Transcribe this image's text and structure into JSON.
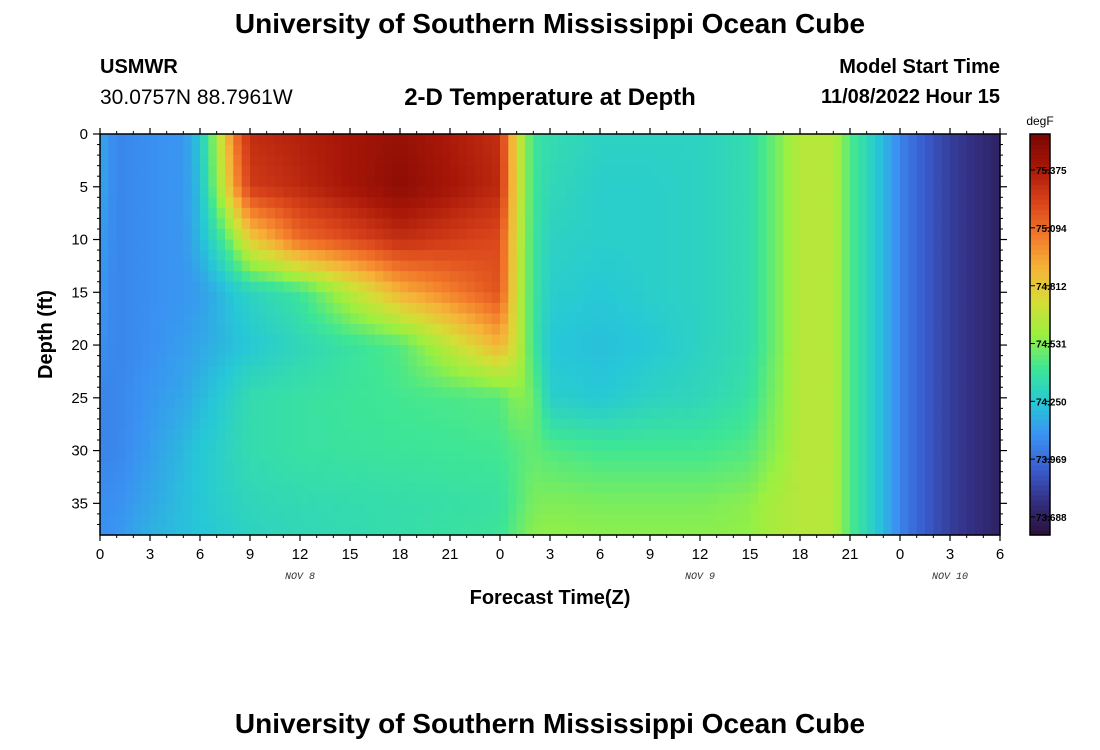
{
  "header": {
    "title": "University of Southern Mississippi Ocean Cube",
    "station": "USMWR",
    "coordinates": "30.0757N  88.7961W",
    "subtitle": "2-D Temperature at Depth",
    "model_start_label": "Model Start Time",
    "model_start_value": "11/08/2022 Hour 15"
  },
  "footer": {
    "title": "University of Southern Mississippi Ocean Cube"
  },
  "chart_data": {
    "type": "heatmap",
    "title": "2-D Temperature at Depth",
    "xlabel": "Forecast Time(Z)",
    "ylabel": "Depth (ft)",
    "x_tick_labels": [
      "0",
      "3",
      "6",
      "9",
      "12",
      "15",
      "18",
      "21",
      "0",
      "3",
      "6",
      "9",
      "12",
      "15",
      "18",
      "21",
      "0",
      "3",
      "6"
    ],
    "x_day_labels": [
      {
        "label": "NOV 8",
        "at_hour": 12
      },
      {
        "label": "NOV 9",
        "at_hour": 36
      },
      {
        "label": "NOV 10",
        "at_hour": 51
      }
    ],
    "x_range_hours": [
      0,
      54
    ],
    "y_tick_labels": [
      "0",
      "5",
      "10",
      "15",
      "20",
      "25",
      "30",
      "35"
    ],
    "ylim": [
      0,
      38
    ],
    "y_inverted": true,
    "colorbar": {
      "unit": "degF",
      "tick_labels": [
        "75.375",
        "75.094",
        "74.812",
        "74.531",
        "74.250",
        "73.969",
        "73.688"
      ],
      "range": [
        73.6,
        75.55
      ],
      "colors": [
        "#2b0f3a",
        "#332e80",
        "#3a5ed0",
        "#3a92f2",
        "#26c9d6",
        "#3ee695",
        "#9af040",
        "#d6dd36",
        "#f6b338",
        "#f2782a",
        "#d8421a",
        "#a81708",
        "#7a0603"
      ]
    },
    "z_grid": {
      "depths_ft": [
        0,
        5,
        10,
        15,
        20,
        25,
        30,
        35,
        38
      ],
      "hours": [
        0,
        1,
        3,
        5,
        6,
        7,
        8,
        9,
        12,
        18,
        24,
        25,
        26,
        27,
        30,
        33,
        36,
        39,
        40,
        42,
        44,
        45,
        47,
        48,
        49,
        51,
        54
      ],
      "values_degF": [
        [
          74.15,
          74.05,
          74.08,
          74.1,
          74.25,
          74.6,
          75.05,
          75.3,
          75.35,
          75.45,
          75.3,
          74.75,
          74.4,
          74.35,
          74.3,
          74.3,
          74.3,
          74.35,
          74.45,
          74.65,
          74.65,
          74.45,
          74.2,
          74.05,
          73.95,
          73.82,
          73.7
        ],
        [
          74.15,
          74.05,
          74.08,
          74.1,
          74.22,
          74.55,
          74.95,
          75.25,
          75.32,
          75.48,
          75.32,
          74.75,
          74.4,
          74.33,
          74.28,
          74.28,
          74.3,
          74.35,
          74.45,
          74.65,
          74.65,
          74.45,
          74.2,
          74.05,
          73.95,
          73.82,
          73.7
        ],
        [
          74.12,
          74.05,
          74.08,
          74.1,
          74.2,
          74.35,
          74.55,
          74.8,
          75.1,
          75.3,
          75.2,
          74.72,
          74.4,
          74.3,
          74.28,
          74.28,
          74.3,
          74.35,
          74.45,
          74.65,
          74.65,
          74.45,
          74.2,
          74.05,
          73.95,
          73.82,
          73.7
        ],
        [
          74.1,
          74.05,
          74.08,
          74.1,
          74.12,
          74.18,
          74.25,
          74.3,
          74.4,
          74.9,
          75.18,
          74.7,
          74.4,
          74.28,
          74.25,
          74.28,
          74.3,
          74.35,
          74.45,
          74.65,
          74.65,
          74.45,
          74.2,
          74.05,
          73.95,
          73.82,
          73.7
        ],
        [
          74.08,
          74.05,
          74.08,
          74.12,
          74.15,
          74.18,
          74.22,
          74.25,
          74.32,
          74.45,
          74.9,
          74.7,
          74.4,
          74.25,
          74.22,
          74.25,
          74.3,
          74.35,
          74.45,
          74.65,
          74.65,
          74.45,
          74.2,
          74.05,
          73.95,
          73.82,
          73.7
        ],
        [
          74.05,
          74.05,
          74.1,
          74.15,
          74.2,
          74.25,
          74.3,
          74.35,
          74.38,
          74.42,
          74.45,
          74.55,
          74.5,
          74.28,
          74.25,
          74.3,
          74.32,
          74.38,
          74.48,
          74.65,
          74.65,
          74.45,
          74.2,
          74.05,
          73.95,
          73.82,
          73.7
        ],
        [
          74.05,
          74.05,
          74.12,
          74.2,
          74.25,
          74.28,
          74.32,
          74.35,
          74.38,
          74.4,
          74.42,
          74.45,
          74.48,
          74.45,
          74.42,
          74.42,
          74.42,
          74.45,
          74.52,
          74.65,
          74.65,
          74.45,
          74.2,
          74.05,
          73.95,
          73.82,
          73.7
        ],
        [
          74.08,
          74.08,
          74.15,
          74.22,
          74.25,
          74.28,
          74.3,
          74.32,
          74.34,
          74.36,
          74.38,
          74.45,
          74.52,
          74.53,
          74.52,
          74.52,
          74.52,
          74.55,
          74.6,
          74.65,
          74.65,
          74.45,
          74.2,
          74.05,
          73.95,
          73.82,
          73.7
        ],
        [
          74.08,
          74.1,
          74.18,
          74.22,
          74.24,
          74.26,
          74.28,
          74.3,
          74.33,
          74.36,
          74.4,
          74.48,
          74.55,
          74.56,
          74.55,
          74.55,
          74.55,
          74.56,
          74.6,
          74.65,
          74.65,
          74.45,
          74.2,
          74.05,
          73.95,
          73.82,
          73.7
        ]
      ]
    }
  }
}
